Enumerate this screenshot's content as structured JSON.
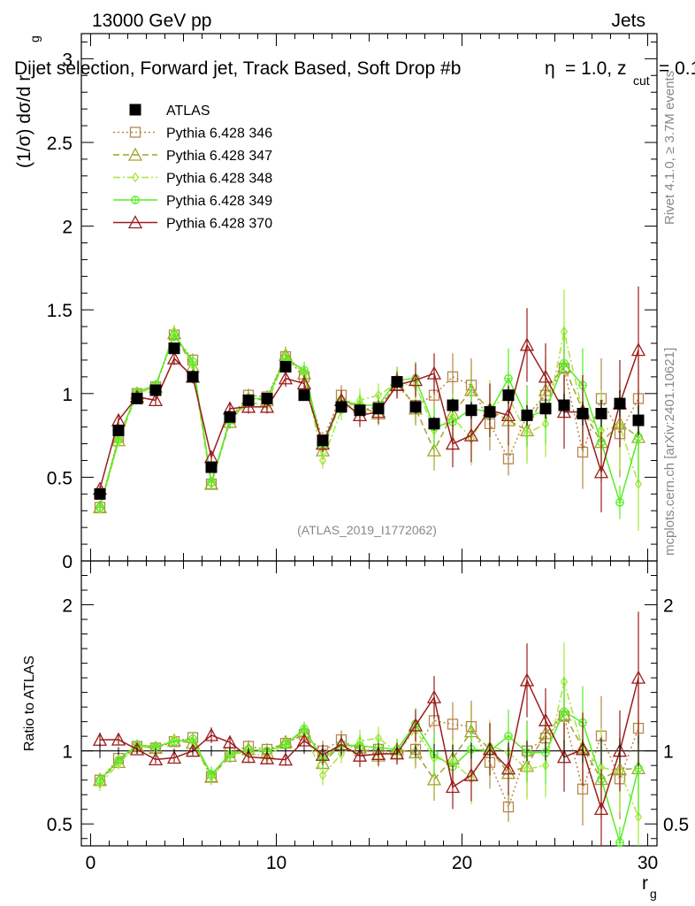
{
  "header": {
    "left": "13000 GeV pp",
    "right": "Jets",
    "title": "Dijet selection, Forward jet, Track Based, Soft Drop #b",
    "title_tail_main": "= 1.0, z",
    "title_tail_sub": "cut",
    "title_tail_end": "= 0.1",
    "beta_symbol": "η"
  },
  "side": {
    "rivet": "Rivet 4.1.0, ≥ 3.7M events",
    "mcplots": "mcplots.cern.ch [arXiv:2401.10621]"
  },
  "watermark": "(ATLAS_2019_I1772062)",
  "colors": {
    "atlas": "#000000",
    "p346": "#b5874a",
    "p347": "#a3a32a",
    "p348": "#a8e63c",
    "p349": "#55ee22",
    "p370": "#9b1c1c"
  },
  "chart_data": {
    "type": "line",
    "ylabel_main": "(1/σ) dσ/d r",
    "ylabel_sub": "g",
    "xlabel": "r",
    "xlabel_sub": "g",
    "ratio_ylabel": "Ratio to ATLAS",
    "xlim": [
      -0.5,
      30.5
    ],
    "ylim_main": [
      0,
      3.15
    ],
    "ylim_ratio": [
      0.35,
      2.3
    ],
    "x_ticks": [
      0,
      10,
      20,
      30
    ],
    "y_ticks_main": [
      "0",
      "0.5",
      "1",
      "1.5",
      "2",
      "2.5",
      "3"
    ],
    "y_ticks_ratio": [
      "0.5",
      "1",
      "2"
    ],
    "x": [
      0.5,
      1.5,
      2.5,
      3.5,
      4.5,
      5.5,
      6.5,
      7.5,
      8.5,
      9.5,
      10.5,
      11.5,
      12.5,
      13.5,
      14.5,
      15.5,
      16.5,
      17.5,
      18.5,
      19.5,
      20.5,
      21.5,
      22.5,
      23.5,
      24.5,
      25.5,
      26.5,
      27.5,
      28.5,
      29.5
    ],
    "legend": [
      {
        "key": "atlas",
        "label": "ATLAS"
      },
      {
        "key": "p346",
        "label": "Pythia 6.428 346"
      },
      {
        "key": "p347",
        "label": "Pythia 6.428 347"
      },
      {
        "key": "p348",
        "label": "Pythia 6.428 348"
      },
      {
        "key": "p349",
        "label": "Pythia 6.428 349"
      },
      {
        "key": "p370",
        "label": "Pythia 6.428 370"
      }
    ],
    "series": [
      {
        "key": "atlas",
        "name": "ATLAS",
        "marker": "square-filled",
        "line": "none",
        "values": [
          0.4,
          0.78,
          0.97,
          1.02,
          1.27,
          1.1,
          0.56,
          0.86,
          0.96,
          0.97,
          1.16,
          0.99,
          0.72,
          0.92,
          0.9,
          0.91,
          1.07,
          0.92,
          0.82,
          0.93,
          0.9,
          0.89,
          0.99,
          0.87,
          0.91,
          0.93,
          0.88,
          0.88,
          0.94,
          0.84
        ],
        "errors": [
          0.02,
          0.02,
          0.02,
          0.02,
          0.02,
          0.02,
          0.02,
          0.02,
          0.02,
          0.02,
          0.02,
          0.02,
          0.03,
          0.03,
          0.03,
          0.03,
          0.03,
          0.04,
          0.04,
          0.04,
          0.05,
          0.05,
          0.05,
          0.06,
          0.06,
          0.07,
          0.07,
          0.08,
          0.08,
          0.09
        ]
      },
      {
        "key": "p346",
        "name": "Pythia 6.428 346",
        "marker": "square-open",
        "line": "dotted",
        "values": [
          0.32,
          0.74,
          1.0,
          1.04,
          1.35,
          1.2,
          0.46,
          0.85,
          0.99,
          0.98,
          1.22,
          1.1,
          0.72,
          0.99,
          0.9,
          0.92,
          1.05,
          0.93,
          0.99,
          1.1,
          1.05,
          0.82,
          0.61,
          0.87,
          0.99,
          1.15,
          0.65,
          0.97,
          0.76,
          0.97
        ],
        "errors": [
          0.02,
          0.03,
          0.03,
          0.03,
          0.04,
          0.04,
          0.03,
          0.04,
          0.04,
          0.04,
          0.05,
          0.05,
          0.05,
          0.06,
          0.07,
          0.07,
          0.08,
          0.1,
          0.12,
          0.14,
          0.16,
          0.16,
          0.1,
          0.18,
          0.2,
          0.22,
          0.22,
          0.24,
          0.26,
          0.28
        ]
      },
      {
        "key": "p347",
        "name": "Pythia 6.428 347",
        "marker": "triangle-open",
        "line": "dashed",
        "values": [
          0.32,
          0.72,
          1.0,
          1.04,
          1.36,
          1.16,
          0.46,
          0.83,
          0.97,
          0.96,
          1.23,
          1.12,
          0.66,
          0.96,
          0.92,
          0.88,
          1.08,
          0.91,
          0.66,
          0.88,
          1.02,
          0.9,
          0.84,
          0.78,
          1.02,
          1.16,
          0.9,
          0.71,
          0.82,
          0.74
        ],
        "errors": [
          0.02,
          0.03,
          0.03,
          0.03,
          0.04,
          0.04,
          0.03,
          0.04,
          0.04,
          0.04,
          0.05,
          0.05,
          0.05,
          0.06,
          0.07,
          0.07,
          0.08,
          0.1,
          0.12,
          0.14,
          0.16,
          0.16,
          0.18,
          0.18,
          0.2,
          0.22,
          0.22,
          0.24,
          0.26,
          0.28
        ]
      },
      {
        "key": "p348",
        "name": "Pythia 6.428 348",
        "marker": "diamond-open",
        "line": "dashdot",
        "values": [
          0.31,
          0.71,
          1.0,
          1.04,
          1.37,
          1.17,
          0.46,
          0.84,
          0.95,
          0.93,
          1.22,
          1.12,
          0.6,
          0.9,
          0.96,
          0.99,
          1.06,
          1.05,
          0.78,
          0.86,
          0.73,
          0.92,
          0.98,
          0.76,
          0.82,
          1.37,
          0.89,
          0.78,
          0.81,
          0.46
        ],
        "errors": [
          0.02,
          0.03,
          0.03,
          0.03,
          0.04,
          0.04,
          0.03,
          0.04,
          0.04,
          0.04,
          0.05,
          0.05,
          0.05,
          0.06,
          0.07,
          0.07,
          0.08,
          0.1,
          0.12,
          0.14,
          0.16,
          0.16,
          0.18,
          0.18,
          0.2,
          0.25,
          0.22,
          0.24,
          0.26,
          0.28
        ]
      },
      {
        "key": "p349",
        "name": "Pythia 6.428 349",
        "marker": "circle-cross",
        "line": "solid",
        "values": [
          0.32,
          0.73,
          1.01,
          1.05,
          1.35,
          1.19,
          0.47,
          0.84,
          0.97,
          0.97,
          1.21,
          1.14,
          0.68,
          0.96,
          0.93,
          0.93,
          1.08,
          1.09,
          0.8,
          0.83,
          0.91,
          0.89,
          1.09,
          0.86,
          0.9,
          1.18,
          1.05,
          0.71,
          0.35,
          0.74
        ],
        "errors": [
          0.02,
          0.03,
          0.03,
          0.03,
          0.04,
          0.04,
          0.03,
          0.04,
          0.04,
          0.04,
          0.05,
          0.05,
          0.05,
          0.06,
          0.07,
          0.07,
          0.08,
          0.1,
          0.12,
          0.14,
          0.16,
          0.16,
          0.18,
          0.18,
          0.2,
          0.22,
          0.22,
          0.24,
          0.1,
          0.28
        ]
      },
      {
        "key": "p370",
        "name": "Pythia 6.428 370",
        "marker": "triangle-open",
        "line": "solid",
        "values": [
          0.43,
          0.84,
          0.98,
          0.96,
          1.21,
          1.1,
          0.62,
          0.91,
          0.92,
          0.92,
          1.09,
          1.06,
          0.7,
          0.96,
          0.87,
          0.89,
          1.05,
          1.08,
          1.12,
          0.7,
          0.75,
          0.9,
          0.87,
          1.29,
          1.1,
          0.89,
          0.89,
          0.53,
          0.94,
          1.26
        ],
        "errors": [
          0.02,
          0.03,
          0.03,
          0.03,
          0.04,
          0.04,
          0.03,
          0.04,
          0.04,
          0.04,
          0.05,
          0.05,
          0.05,
          0.06,
          0.07,
          0.07,
          0.08,
          0.1,
          0.12,
          0.14,
          0.16,
          0.16,
          0.18,
          0.22,
          0.2,
          0.22,
          0.22,
          0.24,
          0.26,
          0.38
        ]
      }
    ]
  }
}
